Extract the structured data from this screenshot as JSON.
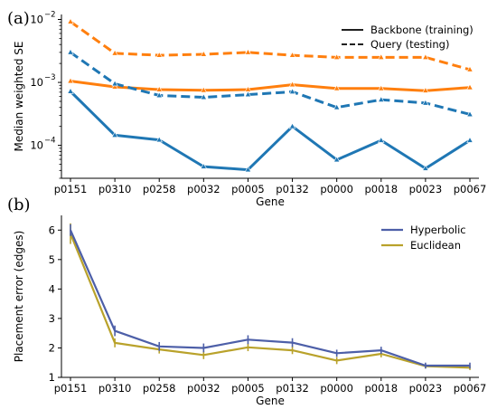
{
  "figure": {
    "panel_a_label": "(a)",
    "panel_b_label": "(b)"
  },
  "chart_data": [
    {
      "type": "line",
      "ylabel": "Median weighted SE",
      "xlabel": "Gene",
      "yscale": "log",
      "ylim": [
        3e-05,
        0.012
      ],
      "yticks": [
        {
          "value": 0.0001,
          "base": "10",
          "exp": "−4"
        },
        {
          "value": 0.001,
          "base": "10",
          "exp": "−3"
        },
        {
          "value": 0.01,
          "base": "10",
          "exp": "−2"
        }
      ],
      "categories": [
        "p0151",
        "p0310",
        "p0258",
        "p0032",
        "p0005",
        "p0132",
        "p0000",
        "p0018",
        "p0023",
        "p0067"
      ],
      "grid": false,
      "legend_position": "top-right",
      "legend": [
        {
          "label": "Backbone (training)",
          "style": "solid"
        },
        {
          "label": "Query (testing)",
          "style": "dashed"
        }
      ],
      "series": [
        {
          "style": "dashed",
          "color": "#ff7f0e",
          "values": [
            0.0092,
            0.0029,
            0.0027,
            0.0028,
            0.003,
            0.0027,
            0.0025,
            0.0025,
            0.0025,
            0.0016
          ]
        },
        {
          "style": "solid",
          "color": "#ff7f0e",
          "values": [
            0.00105,
            0.00085,
            0.00077,
            0.00075,
            0.00077,
            0.00092,
            0.0008,
            0.0008,
            0.00074,
            0.00083
          ]
        },
        {
          "style": "dashed",
          "color": "#1f77b4",
          "values": [
            0.003,
            0.00095,
            0.00062,
            0.00058,
            0.00064,
            0.00071,
            0.0004,
            0.00053,
            0.00047,
            0.00031
          ]
        },
        {
          "style": "solid",
          "color": "#1f77b4",
          "values": [
            0.00072,
            0.000145,
            0.000122,
            4.6e-05,
            4.1e-05,
            0.0002,
            5.9e-05,
            0.00012,
            4.3e-05,
            0.00012
          ]
        }
      ]
    },
    {
      "type": "line",
      "ylabel": "Placement error (edges)",
      "xlabel": "Gene",
      "ylim": [
        1,
        6.5
      ],
      "yticks": [
        1,
        2,
        3,
        4,
        5,
        6
      ],
      "categories": [
        "p0151",
        "p0310",
        "p0258",
        "p0032",
        "p0005",
        "p0132",
        "p0000",
        "p0018",
        "p0023",
        "p0067"
      ],
      "grid": false,
      "legend_position": "top-right",
      "series": [
        {
          "name": "Hyperbolic",
          "color": "#4d5fa8",
          "values": [
            6.0,
            2.58,
            2.05,
            2.0,
            2.28,
            2.18,
            1.82,
            1.92,
            1.4,
            1.4
          ],
          "errors": [
            0.2,
            0.18,
            0.15,
            0.15,
            0.15,
            0.15,
            0.12,
            0.12,
            0.1,
            0.1
          ]
        },
        {
          "name": "Euclidean",
          "color": "#b9a22b",
          "values": [
            5.88,
            2.17,
            1.95,
            1.76,
            2.02,
            1.92,
            1.57,
            1.8,
            1.38,
            1.33
          ],
          "errors": [
            0.35,
            0.15,
            0.14,
            0.14,
            0.13,
            0.13,
            0.12,
            0.12,
            0.08,
            0.08
          ]
        }
      ]
    }
  ]
}
